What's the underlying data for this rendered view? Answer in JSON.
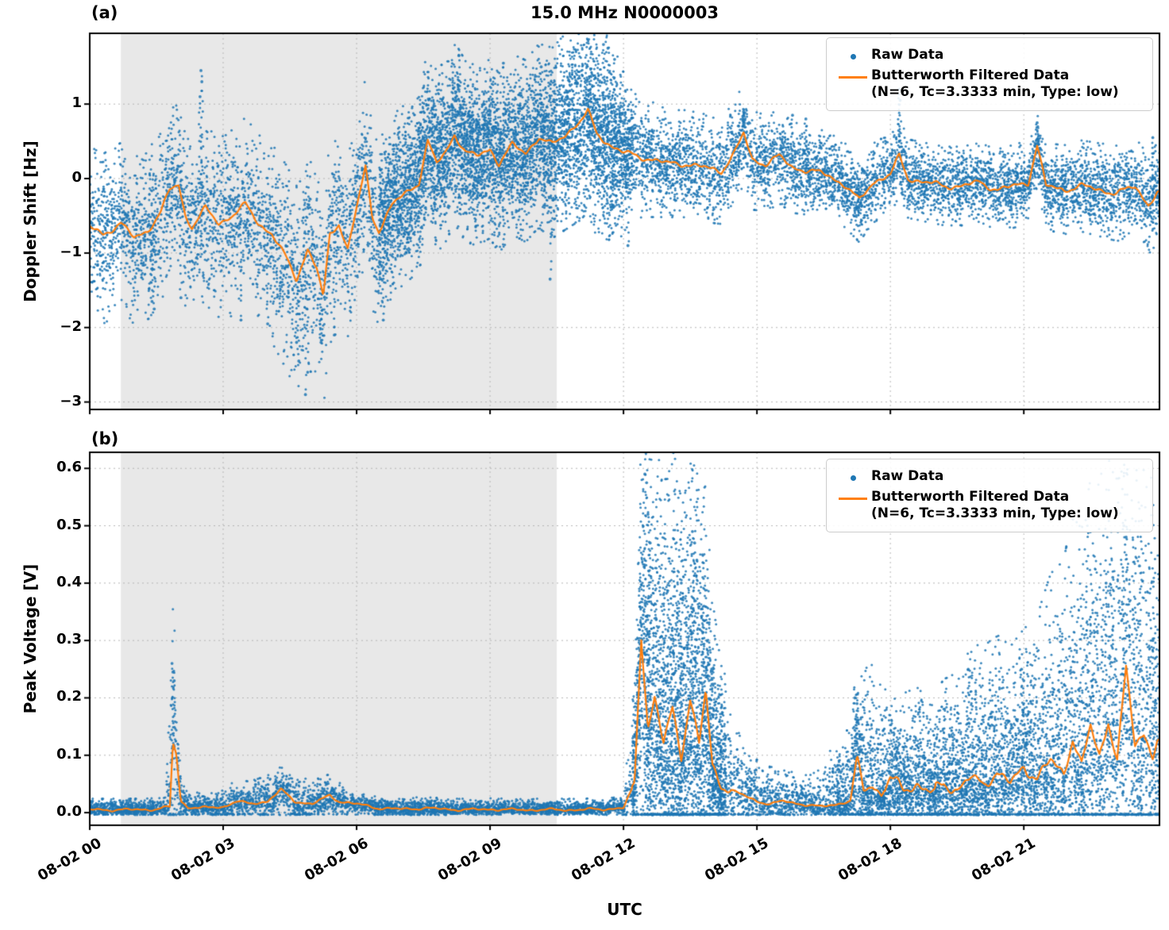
{
  "figure": {
    "panel_a_label": "(a)",
    "panel_b_label": "(b)",
    "background": "#ffffff",
    "shading_color": "#e8e8e8",
    "grid_color": "#b5b5b5"
  },
  "chart_data": [
    {
      "type": "scatter",
      "panel": "a",
      "title": "15.0 MHz N0000003",
      "ylabel": "Doppler Shift [Hz]",
      "xlim_hours": [
        0,
        24.05
      ],
      "ylim": [
        -3.1,
        1.95
      ],
      "xtick_hours": [
        0,
        3,
        6,
        9,
        12,
        15,
        18,
        21
      ],
      "xtick_labels": [],
      "ytick_values": [
        1,
        0,
        -1,
        -2,
        -3
      ],
      "ytick_labels": [
        "1",
        "0",
        "−1",
        "−2",
        "−3"
      ],
      "shaded_region_hours": [
        0.7,
        10.5
      ],
      "grid": true,
      "legend_position": "upper right",
      "legend": {
        "raw_label": "Raw Data",
        "filtered_label": "Butterworth Filtered Data",
        "filtered_params": "(N=6, Tc=3.3333 min, Type: low)"
      },
      "series": [
        {
          "name": "Raw Data",
          "plot": "scatter",
          "color": "#1f77b4",
          "spread": {
            "x": [
              0,
              2,
              4,
              5,
              6,
              7,
              8,
              9,
              10,
              11,
              11.7,
              12.2,
              13,
              14,
              16,
              18,
              20,
              22,
              24
            ],
            "up": [
              0.45,
              0.45,
              0.5,
              0.55,
              0.5,
              0.5,
              0.52,
              0.5,
              0.52,
              0.58,
              0.6,
              0.35,
              0.3,
              0.3,
              0.25,
              0.22,
              0.22,
              0.25,
              0.28
            ],
            "down": [
              0.5,
              0.5,
              0.6,
              0.65,
              0.55,
              0.5,
              0.5,
              0.5,
              0.5,
              0.55,
              0.6,
              0.35,
              0.3,
              0.3,
              0.25,
              0.22,
              0.22,
              0.25,
              0.28
            ]
          },
          "outliers": [
            [
              1.4,
              -1.65
            ],
            [
              1.45,
              -1.75
            ],
            [
              2.05,
              -1.6
            ],
            [
              2.5,
              1.45
            ],
            [
              2.52,
              1.3
            ],
            [
              2.48,
              1.1
            ],
            [
              3.4,
              -1.9
            ],
            [
              4.0,
              -1.95
            ],
            [
              4.65,
              -2.2
            ],
            [
              4.7,
              -2.45
            ],
            [
              4.85,
              -2.9
            ],
            [
              4.9,
              -2.6
            ],
            [
              5.2,
              -2.2
            ],
            [
              5.5,
              -2.1
            ],
            [
              6.6,
              -1.9
            ],
            [
              8.3,
              1.65
            ],
            [
              9.3,
              1.55
            ],
            [
              10.15,
              1.5
            ],
            [
              11.55,
              1.8
            ],
            [
              11.65,
              1.75
            ],
            [
              11.8,
              1.6
            ],
            [
              10.35,
              -1.35
            ],
            [
              12.1,
              -0.9
            ],
            [
              14.7,
              0.9
            ],
            [
              15.8,
              0.85
            ],
            [
              16.1,
              0.8
            ],
            [
              18.2,
              1.2
            ],
            [
              18.22,
              1.05
            ],
            [
              21.3,
              0.75
            ],
            [
              23.9,
              0.55
            ]
          ],
          "synthesis": {
            "seed": 42,
            "base_count": 11000,
            "extra_regions": [
              {
                "range": [
                  6.5,
                  12.2
                ],
                "count": 3500
              }
            ],
            "clamp_min": null,
            "line_noise_amp": 0.05,
            "line_noise_gate": null
          }
        },
        {
          "name": "Butterworth Filtered Data",
          "params": "(N=6, Tc=3.3333 min, Type: low)",
          "plot": "line",
          "color": "#ff7f0e",
          "x": [
            0,
            0.3,
            0.7,
            1.0,
            1.3,
            1.6,
            1.8,
            2.0,
            2.15,
            2.3,
            2.6,
            2.9,
            3.2,
            3.5,
            3.8,
            4.1,
            4.4,
            4.65,
            4.9,
            5.1,
            5.25,
            5.4,
            5.6,
            5.8,
            6.0,
            6.2,
            6.35,
            6.5,
            6.8,
            7.1,
            7.4,
            7.6,
            7.8,
            8.0,
            8.2,
            8.45,
            8.7,
            9.0,
            9.2,
            9.5,
            9.8,
            10.1,
            10.4,
            10.7,
            11.0,
            11.2,
            11.4,
            11.7,
            12.0,
            12.3,
            12.7,
            13.0,
            13.4,
            13.8,
            14.2,
            14.5,
            14.7,
            14.9,
            15.2,
            15.5,
            15.8,
            16.2,
            16.6,
            17.0,
            17.3,
            17.6,
            18.0,
            18.2,
            18.4,
            18.8,
            19.2,
            19.6,
            20.0,
            20.4,
            20.8,
            21.1,
            21.3,
            21.5,
            21.9,
            22.3,
            22.7,
            23.1,
            23.5,
            23.8,
            24.0
          ],
          "y": [
            -0.65,
            -0.75,
            -0.6,
            -0.8,
            -0.7,
            -0.45,
            -0.15,
            -0.08,
            -0.5,
            -0.65,
            -0.4,
            -0.6,
            -0.5,
            -0.35,
            -0.6,
            -0.75,
            -1.05,
            -1.35,
            -0.95,
            -1.2,
            -1.6,
            -0.75,
            -0.6,
            -0.95,
            -0.4,
            0.15,
            -0.5,
            -0.7,
            -0.35,
            -0.2,
            -0.05,
            0.5,
            0.2,
            0.35,
            0.6,
            0.35,
            0.3,
            0.4,
            0.2,
            0.45,
            0.35,
            0.55,
            0.45,
            0.6,
            0.75,
            0.9,
            0.6,
            0.45,
            0.35,
            0.3,
            0.25,
            0.2,
            0.2,
            0.15,
            0.1,
            0.35,
            0.6,
            0.25,
            0.2,
            0.3,
            0.15,
            0.1,
            0.05,
            -0.1,
            -0.3,
            -0.05,
            0.05,
            0.3,
            0.0,
            -0.05,
            -0.1,
            -0.1,
            -0.05,
            -0.15,
            -0.1,
            -0.05,
            0.45,
            -0.1,
            -0.15,
            -0.1,
            -0.15,
            -0.2,
            -0.1,
            -0.35,
            -0.2
          ]
        }
      ]
    },
    {
      "type": "scatter",
      "panel": "b",
      "ylabel": "Peak Voltage [V]",
      "xlabel": "UTC",
      "xlim_hours": [
        0,
        24.05
      ],
      "ylim": [
        -0.022,
        0.628
      ],
      "xtick_hours": [
        0,
        3,
        6,
        9,
        12,
        15,
        18,
        21
      ],
      "xtick_labels": [
        "08-02 00",
        "08-02 03",
        "08-02 06",
        "08-02 09",
        "08-02 12",
        "08-02 15",
        "08-02 18",
        "08-02 21"
      ],
      "ytick_values": [
        0.0,
        0.1,
        0.2,
        0.3,
        0.4,
        0.5,
        0.6
      ],
      "ytick_labels": [
        "0.0",
        "0.1",
        "0.2",
        "0.3",
        "0.4",
        "0.5",
        "0.6"
      ],
      "shaded_region_hours": [
        0.7,
        10.5
      ],
      "grid": true,
      "legend_position": "upper right",
      "legend": {
        "raw_label": "Raw Data",
        "filtered_label": "Butterworth Filtered Data",
        "filtered_params": "(N=6, Tc=3.3333 min, Type: low)"
      },
      "series": [
        {
          "name": "Raw Data",
          "plot": "scatter",
          "color": "#1f77b4",
          "spread": {
            "x": [
              0,
              1.7,
              1.85,
              2.0,
              2.2,
              3.3,
              4.3,
              5.5,
              6,
              12,
              12.3,
              12.5,
              13,
              13.5,
              14,
              14.5,
              15,
              16,
              17,
              17.5,
              18,
              19,
              20,
              21,
              21.5,
              22,
              22.5,
              23,
              23.5,
              24
            ],
            "up": [
              0.008,
              0.008,
              0.12,
              0.05,
              0.01,
              0.015,
              0.02,
              0.015,
              0.008,
              0.008,
              0.09,
              0.24,
              0.18,
              0.22,
              0.12,
              0.05,
              0.03,
              0.02,
              0.05,
              0.09,
              0.07,
              0.07,
              0.1,
              0.1,
              0.13,
              0.16,
              0.18,
              0.22,
              0.25,
              0.18
            ],
            "down_rule": "limited-by-trend"
          },
          "outliers": [
            [
              1.85,
              0.26
            ],
            [
              1.87,
              0.245
            ],
            [
              1.9,
              0.23
            ],
            [
              12.48,
              0.59
            ],
            [
              12.52,
              0.575
            ],
            [
              12.55,
              0.52
            ],
            [
              12.6,
              0.47
            ],
            [
              13.55,
              0.49
            ],
            [
              13.6,
              0.47
            ],
            [
              13.65,
              0.44
            ],
            [
              13.3,
              0.4
            ],
            [
              12.9,
              0.38
            ],
            [
              17.2,
              0.2
            ],
            [
              17.25,
              0.19
            ],
            [
              19.75,
              0.25
            ],
            [
              20.95,
              0.25
            ],
            [
              21.0,
              0.23
            ],
            [
              22.85,
              0.4
            ],
            [
              23.0,
              0.41
            ],
            [
              23.25,
              0.5
            ],
            [
              23.3,
              0.48
            ],
            [
              23.6,
              0.43
            ],
            [
              23.9,
              0.3
            ]
          ],
          "synthesis": {
            "seed": 1337,
            "base_count": 9000,
            "extra_regions": [
              {
                "range": [
                  12.2,
                  14.3
                ],
                "count": 2600
              },
              {
                "range": [
                  16.8,
                  24.05
                ],
                "count": 3200
              }
            ],
            "clamp_min": -0.004,
            "line_noise_amp": 0.012,
            "line_noise_gate": 0.04
          }
        },
        {
          "name": "Butterworth Filtered Data",
          "params": "(N=6, Tc=3.3333 min, Type: low)",
          "plot": "line",
          "color": "#ff7f0e",
          "x": [
            0,
            0.5,
            1.0,
            1.5,
            1.8,
            1.87,
            1.95,
            2.05,
            2.2,
            2.5,
            3.0,
            3.3,
            3.6,
            4.0,
            4.3,
            4.6,
            5.0,
            5.4,
            5.6,
            6.0,
            6.5,
            7.0,
            7.5,
            8.0,
            8.5,
            9.0,
            9.5,
            10.0,
            10.5,
            11.0,
            11.5,
            12.0,
            12.25,
            12.4,
            12.55,
            12.7,
            12.9,
            13.1,
            13.3,
            13.5,
            13.7,
            13.85,
            14.0,
            14.2,
            14.4,
            14.7,
            15.0,
            15.3,
            15.6,
            16.0,
            16.4,
            16.8,
            17.1,
            17.25,
            17.4,
            17.6,
            17.8,
            18.0,
            18.3,
            18.6,
            18.9,
            19.2,
            19.5,
            19.8,
            20.1,
            20.4,
            20.7,
            21.0,
            21.3,
            21.6,
            21.9,
            22.1,
            22.3,
            22.5,
            22.7,
            22.9,
            23.1,
            23.3,
            23.5,
            23.7,
            23.9,
            24.0
          ],
          "y": [
            0.005,
            0.005,
            0.005,
            0.006,
            0.01,
            0.12,
            0.1,
            0.02,
            0.01,
            0.008,
            0.01,
            0.02,
            0.015,
            0.02,
            0.04,
            0.02,
            0.015,
            0.03,
            0.02,
            0.015,
            0.008,
            0.006,
            0.008,
            0.006,
            0.005,
            0.006,
            0.005,
            0.005,
            0.005,
            0.005,
            0.006,
            0.008,
            0.05,
            0.31,
            0.15,
            0.2,
            0.12,
            0.18,
            0.1,
            0.2,
            0.12,
            0.21,
            0.08,
            0.05,
            0.04,
            0.03,
            0.02,
            0.015,
            0.02,
            0.015,
            0.01,
            0.015,
            0.02,
            0.09,
            0.04,
            0.05,
            0.03,
            0.06,
            0.04,
            0.05,
            0.035,
            0.05,
            0.04,
            0.06,
            0.05,
            0.07,
            0.05,
            0.08,
            0.06,
            0.09,
            0.07,
            0.13,
            0.08,
            0.15,
            0.1,
            0.16,
            0.09,
            0.25,
            0.12,
            0.14,
            0.1,
            0.12
          ]
        }
      ]
    }
  ]
}
